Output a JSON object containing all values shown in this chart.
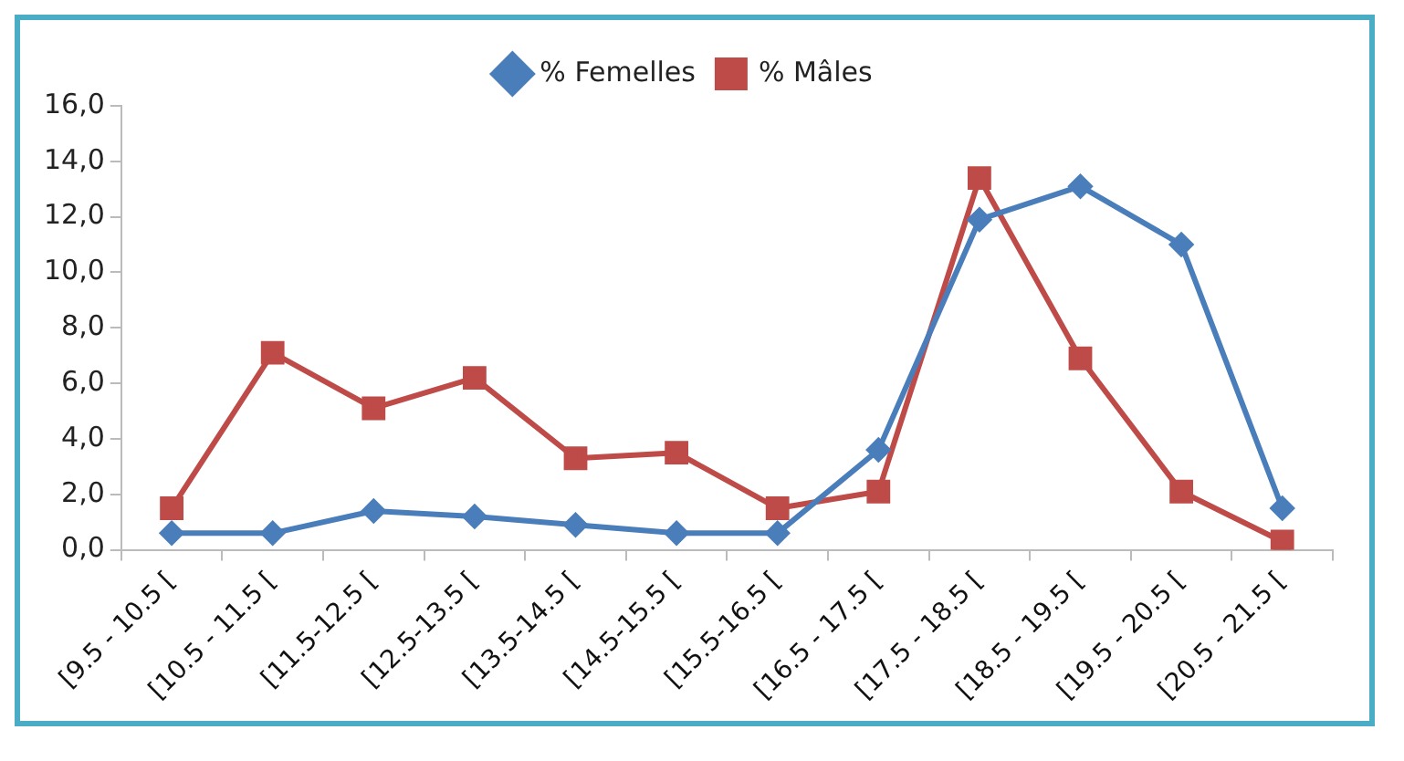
{
  "chart_data": {
    "type": "line",
    "categories": [
      "[9.5 - 10.5 [",
      "[10.5 - 11.5 [",
      "[11.5-12.5 [",
      "[12.5-13.5 [",
      "[13.5-14.5 [",
      "[14.5-15.5 [",
      "[15.5-16.5 [",
      "[16.5 - 17.5 [",
      "[17.5 - 18.5 [",
      "[18.5 - 19.5 [",
      "[19.5 - 20.5 [",
      "[20.5 - 21.5 ["
    ],
    "series": [
      {
        "name": "% Femelles",
        "color": "#4a7ebb",
        "marker": "diamond",
        "values": [
          0.6,
          0.6,
          1.4,
          1.2,
          0.9,
          0.6,
          0.6,
          3.6,
          11.9,
          13.1,
          11.0,
          1.5
        ]
      },
      {
        "name": "% Mâles",
        "color": "#be4b48",
        "marker": "square",
        "values": [
          1.5,
          7.1,
          5.1,
          6.2,
          3.3,
          3.5,
          1.5,
          2.1,
          13.4,
          6.9,
          2.1,
          0.3
        ]
      }
    ],
    "ylim": [
      0,
      16
    ],
    "yticks": [
      {
        "value": 0,
        "label": "0,0"
      },
      {
        "value": 2,
        "label": "2,0"
      },
      {
        "value": 4,
        "label": "4,0"
      },
      {
        "value": 6,
        "label": "6,0"
      },
      {
        "value": 8,
        "label": "8,0"
      },
      {
        "value": 10,
        "label": "10,0"
      },
      {
        "value": 12,
        "label": "12,0"
      },
      {
        "value": 14,
        "label": "14,0"
      },
      {
        "value": 16,
        "label": "16,0"
      }
    ],
    "grid": false,
    "legend": "top"
  }
}
